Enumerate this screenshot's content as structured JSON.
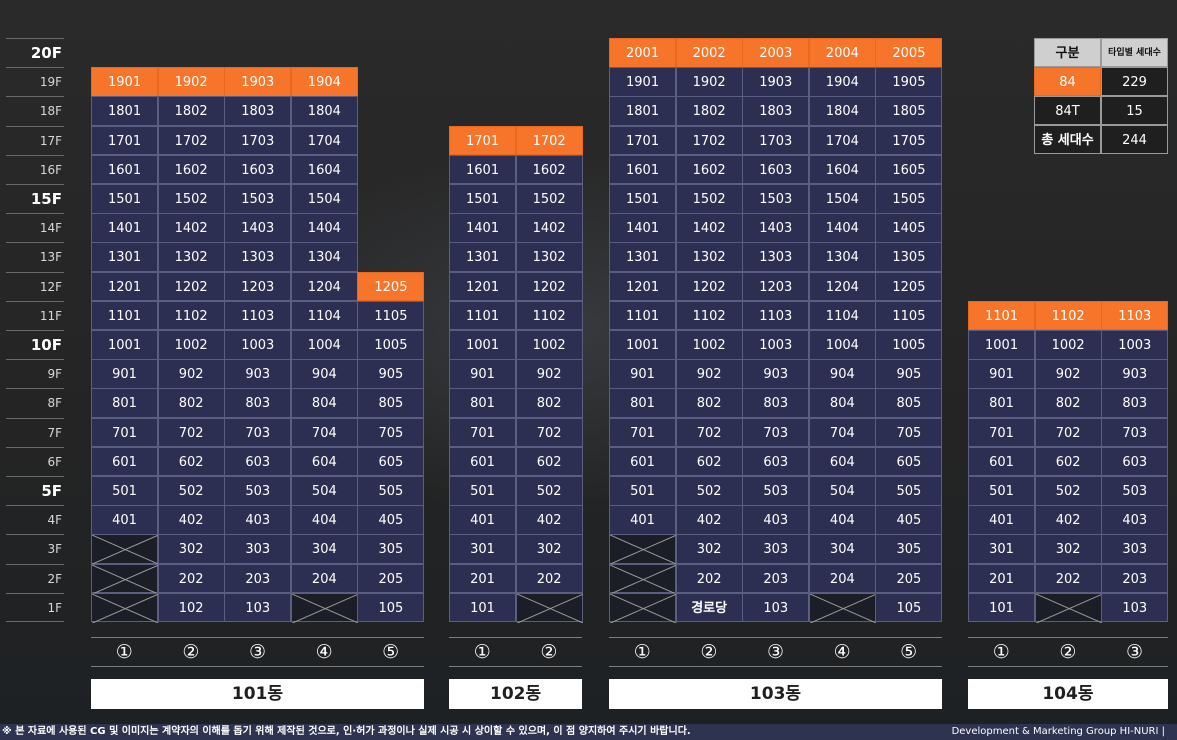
{
  "floor_labels": {
    "20": "20F",
    "19": "19F",
    "18": "18F",
    "17": "17F",
    "16": "16F",
    "15": "15F",
    "14": "14F",
    "13": "13F",
    "12": "12F",
    "11": "11F",
    "10": "10F",
    "9": "9F",
    "8": "8F",
    "7": "7F",
    "6": "6F",
    "5": "5F",
    "4": "4F",
    "3": "3F",
    "2": "2F",
    "1": "1F"
  },
  "major_floors": [
    20,
    15,
    10,
    5
  ],
  "colors": {
    "top_floor": "#f7742b",
    "unit": "#2d2f52",
    "empty": "#1b1d27",
    "footer": "#2e3350"
  },
  "buildings": [
    {
      "name": "101동",
      "line_labels": [
        "①",
        "②",
        "③",
        "④",
        "⑤"
      ],
      "columns": [
        {
          "line": 1,
          "top_floor": 19,
          "empty_floors": [
            1,
            2,
            3
          ]
        },
        {
          "line": 2,
          "top_floor": 19,
          "empty_floors": []
        },
        {
          "line": 3,
          "top_floor": 19,
          "empty_floors": []
        },
        {
          "line": 4,
          "top_floor": 19,
          "empty_floors": [
            1
          ]
        },
        {
          "line": 5,
          "top_floor": 12,
          "empty_floors": []
        }
      ]
    },
    {
      "name": "102동",
      "line_labels": [
        "①",
        "②"
      ],
      "columns": [
        {
          "line": 1,
          "top_floor": 17,
          "empty_floors": []
        },
        {
          "line": 2,
          "top_floor": 17,
          "empty_floors": [
            1
          ]
        }
      ]
    },
    {
      "name": "103동",
      "line_labels": [
        "①",
        "②",
        "③",
        "④",
        "⑤"
      ],
      "columns": [
        {
          "line": 1,
          "top_floor": 20,
          "empty_floors": [
            1,
            2,
            3
          ]
        },
        {
          "line": 2,
          "top_floor": 20,
          "empty_floors": [],
          "special": {
            "1": "경로당"
          }
        },
        {
          "line": 3,
          "top_floor": 20,
          "empty_floors": []
        },
        {
          "line": 4,
          "top_floor": 20,
          "empty_floors": [
            1
          ]
        },
        {
          "line": 5,
          "top_floor": 20,
          "empty_floors": []
        }
      ]
    },
    {
      "name": "104동",
      "line_labels": [
        "①",
        "②",
        "③"
      ],
      "columns": [
        {
          "line": 1,
          "top_floor": 11,
          "empty_floors": []
        },
        {
          "line": 2,
          "top_floor": 11,
          "empty_floors": [
            1
          ]
        },
        {
          "line": 3,
          "top_floor": 11,
          "empty_floors": []
        }
      ]
    }
  ],
  "summary": {
    "header": [
      "구분",
      "타입별 세대수"
    ],
    "rows": [
      {
        "type": "84",
        "count": "229"
      },
      {
        "type": "84T",
        "count": "15"
      },
      {
        "type": "총 세대수",
        "count": "244"
      }
    ]
  },
  "footer": {
    "disclaimer": "※ 본 자료에 사용된 CG 및 이미지는 계약자의 이해를 돕기 위해 제작된 것으로, 인·허가 과정이나 실제 시공 시 상이할 수 있으며, 이 점 양지하여 주시기 바랍니다.",
    "credit": "Development & Marketing Group HI-NURI  |"
  }
}
